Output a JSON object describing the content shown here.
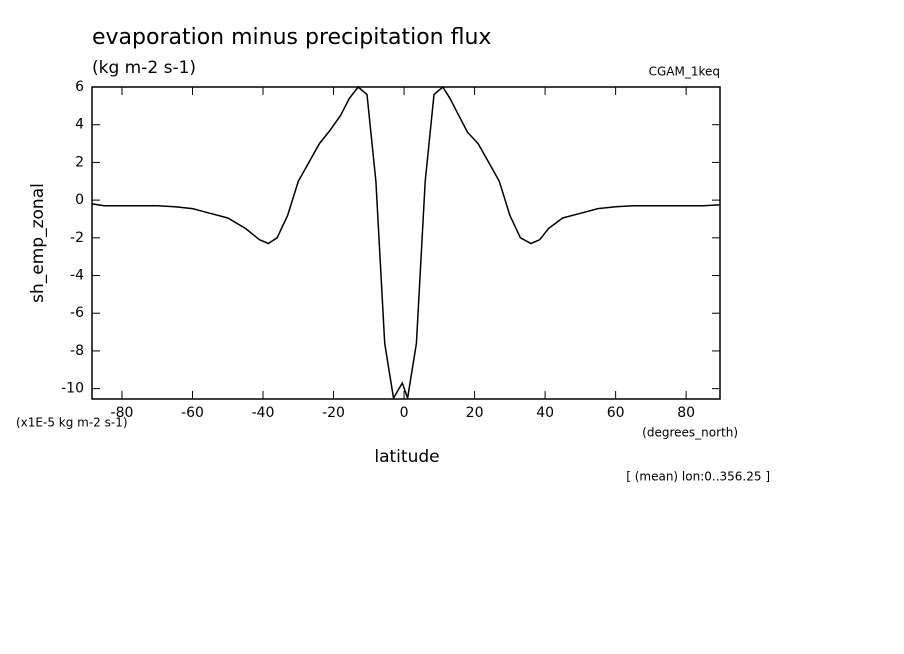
{
  "chart_data": {
    "type": "line",
    "title": "evaporation minus precipitation flux",
    "subtitle": "(kg m-2 s-1)",
    "dataset_label": "CGAM_1keq",
    "y_label": "sh_emp_zonal",
    "y_units": "(x1E-5 kg m-2 s-1)",
    "x_label": "latitude",
    "x_units": "(degrees_north)",
    "annotation": "[ (mean) lon:0..356.25 ]",
    "x": [
      -88.5,
      -85,
      -80,
      -75,
      -70,
      -65,
      -60,
      -55,
      -50,
      -45,
      -41,
      -38.5,
      -36,
      -33,
      -30,
      -27,
      -24,
      -21,
      -18,
      -15.5,
      -13,
      -10.5,
      -8,
      -5.5,
      -3,
      -0.5,
      1,
      3.5,
      6,
      8.5,
      11,
      13,
      15.5,
      18,
      21,
      24,
      27,
      30,
      33,
      36,
      38.5,
      41,
      45,
      50,
      55,
      60,
      65,
      70,
      75,
      80,
      85,
      89.6
    ],
    "series": [
      {
        "name": "sh_emp_zonal",
        "color": "#000000",
        "values": [
          -0.2,
          -0.3,
          -0.3,
          -0.3,
          -0.3,
          -0.35,
          -0.45,
          -0.7,
          -0.95,
          -1.5,
          -2.1,
          -2.3,
          -2.0,
          -0.8,
          1.0,
          2.0,
          3.0,
          3.7,
          4.5,
          5.4,
          6.0,
          5.6,
          1.0,
          -7.6,
          -10.5,
          -9.7,
          -10.5,
          -7.6,
          1.0,
          5.6,
          6.0,
          5.4,
          4.5,
          3.6,
          3.0,
          2.0,
          1.0,
          -0.8,
          -2.0,
          -2.3,
          -2.1,
          -1.5,
          -0.95,
          -0.7,
          -0.45,
          -0.35,
          -0.3,
          -0.3,
          -0.3,
          -0.3,
          -0.3,
          -0.25
        ]
      }
    ],
    "xlim": [
      -88.5,
      89.6
    ],
    "ylim": [
      -10.55,
      6
    ],
    "xticks": [
      -80,
      -60,
      -40,
      -20,
      0,
      20,
      40,
      60,
      80
    ],
    "yticks": [
      -10,
      -8,
      -6,
      -4,
      -2,
      0,
      2,
      4,
      6
    ]
  }
}
